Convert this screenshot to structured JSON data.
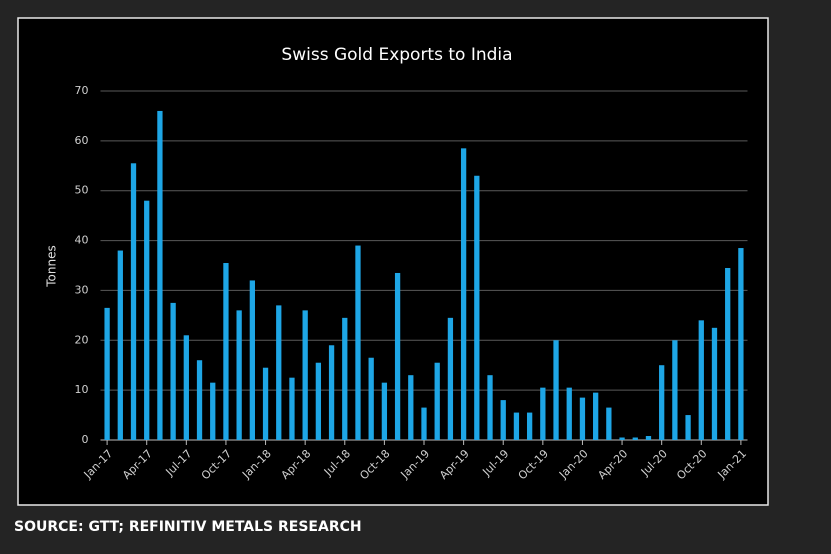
{
  "chart_data": {
    "type": "bar",
    "title": "Swiss Gold Exports to India",
    "ylabel": "Tonnes",
    "categories": [
      "Jan-17",
      null,
      null,
      "Apr-17",
      null,
      null,
      "Jul-17",
      null,
      null,
      "Oct-17",
      null,
      null,
      "Jan-18",
      null,
      null,
      "Apr-18",
      null,
      null,
      "Jul-18",
      null,
      null,
      "Oct-18",
      null,
      null,
      "Jan-19",
      null,
      null,
      "Apr-19",
      null,
      null,
      "Jul-19",
      null,
      null,
      "Oct-19",
      null,
      null,
      "Jan-20",
      null,
      null,
      "Apr-20",
      null,
      null,
      "Jul-20",
      null,
      null,
      "Oct-20",
      null,
      null,
      "Jan-21"
    ],
    "values": [
      26.5,
      38,
      55.5,
      48,
      66,
      27.5,
      21,
      16,
      11.5,
      35.5,
      26,
      32,
      14.5,
      27,
      12.5,
      26,
      15.5,
      19,
      24.5,
      39,
      16.5,
      11.5,
      33.5,
      13,
      6.5,
      15.5,
      24.5,
      58.5,
      53,
      13,
      8,
      5.5,
      5.5,
      10.5,
      20,
      10.5,
      8.5,
      9.5,
      6.5,
      0.5,
      0.5,
      0.8,
      15,
      20,
      5,
      24,
      22.5,
      34.5,
      38.5
    ],
    "color": "#1ea6e6",
    "ylim": [
      0,
      70
    ],
    "yticks": [
      0,
      10,
      20,
      30,
      40,
      50,
      60,
      70
    ],
    "grid": true
  },
  "source": "SOURCE: GTT; REFINITIV METALS RESEARCH"
}
